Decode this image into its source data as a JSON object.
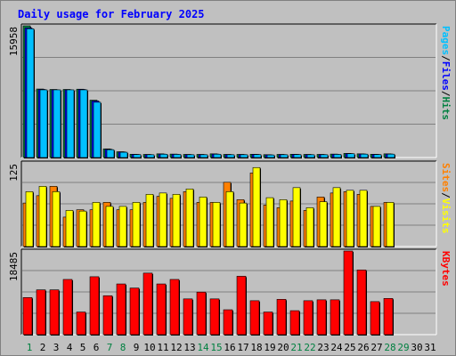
{
  "title": "Daily usage for February 2025",
  "colors": {
    "pages": "#00c0ff",
    "files": "#0000ff",
    "hits": "#008040",
    "sites": "#ff8000",
    "visits": "#ffff00",
    "kbytes": "#ff0000",
    "weekend_day": "#008040",
    "weekday": "#000000"
  },
  "chart_data": [
    {
      "type": "bar",
      "panel": "hits-files-pages",
      "y_max_label": "15958",
      "legend": [
        {
          "name": "Pages",
          "color": "#00c0ff"
        },
        {
          "name": "/",
          "color": "#000000"
        },
        {
          "name": "Files",
          "color": "#0000ff"
        },
        {
          "name": "/",
          "color": "#000000"
        },
        {
          "name": "Hits",
          "color": "#008040"
        }
      ],
      "ylim": [
        0,
        15958
      ],
      "series": [
        {
          "values": [
            15958,
            8300,
            8250,
            8250,
            8280,
            6950,
            1050,
            700,
            400,
            380,
            450,
            420,
            380,
            380,
            450,
            380,
            380,
            400,
            350,
            380,
            400,
            380,
            380,
            420,
            500,
            450,
            400,
            450,
            0,
            0,
            0
          ]
        },
        {
          "values": [
            15700,
            8250,
            8200,
            8200,
            8250,
            6850,
            1000,
            680,
            380,
            360,
            420,
            400,
            360,
            360,
            420,
            360,
            360,
            380,
            330,
            360,
            380,
            360,
            360,
            400,
            480,
            430,
            380,
            430,
            0,
            0,
            0
          ]
        },
        {
          "values": [
            15600,
            8200,
            8200,
            8200,
            8200,
            6700,
            950,
            640,
            360,
            340,
            400,
            380,
            340,
            340,
            400,
            340,
            340,
            360,
            310,
            340,
            360,
            340,
            340,
            380,
            460,
            410,
            360,
            410,
            0,
            0,
            0
          ]
        }
      ]
    },
    {
      "type": "bar",
      "panel": "visits-sites",
      "y_max_label": "125",
      "legend": [
        {
          "name": "Sites",
          "color": "#ff8000"
        },
        {
          "name": "/",
          "color": "#000000"
        },
        {
          "name": "Visits",
          "color": "#ffff00"
        }
      ],
      "ylim": [
        0,
        125
      ],
      "series": [
        {
          "values": [
            65,
            76,
            90,
            44,
            55,
            55,
            66,
            55,
            55,
            66,
            75,
            72,
            82,
            66,
            66,
            96,
            70,
            110,
            62,
            58,
            68,
            54,
            74,
            80,
            82,
            78,
            60,
            66,
            0,
            0,
            0
          ]
        },
        {
          "values": [
            82,
            90,
            82,
            54,
            53,
            66,
            60,
            60,
            66,
            78,
            80,
            78,
            86,
            74,
            66,
            82,
            65,
            118,
            73,
            70,
            88,
            58,
            67,
            88,
            84,
            84,
            60,
            66,
            0,
            0,
            0
          ]
        }
      ]
    },
    {
      "type": "bar",
      "panel": "kbytes",
      "y_max_label": "18485",
      "legend": [
        {
          "name": "KBytes",
          "color": "#ff0000"
        }
      ],
      "ylim": [
        0,
        18485
      ],
      "series": [
        {
          "values": [
            8200,
            9900,
            9900,
            12200,
            5000,
            12800,
            8600,
            11200,
            10300,
            13600,
            11200,
            12200,
            7900,
            9400,
            7900,
            5500,
            12900,
            7500,
            5000,
            7800,
            5300,
            7500,
            7700,
            7700,
            18485,
            14300,
            7300,
            8000,
            0,
            0,
            0
          ]
        }
      ]
    }
  ],
  "days": [
    "1",
    "2",
    "3",
    "4",
    "5",
    "6",
    "7",
    "8",
    "9",
    "10",
    "11",
    "12",
    "13",
    "14",
    "15",
    "16",
    "17",
    "18",
    "19",
    "20",
    "21",
    "22",
    "23",
    "24",
    "25",
    "26",
    "27",
    "28",
    "29",
    "30",
    "31"
  ],
  "weekend_days": [
    1,
    7,
    8,
    14,
    15,
    21,
    22,
    28,
    29
  ]
}
